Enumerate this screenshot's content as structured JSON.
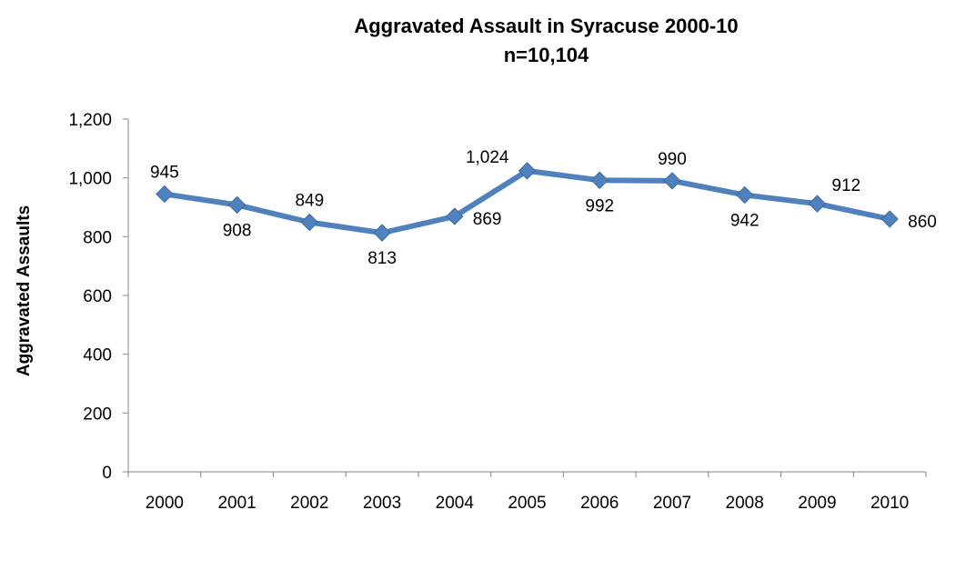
{
  "chart_data": {
    "type": "line",
    "title": "Aggravated Assault in Syracuse 2000-10",
    "subtitle": "n=10,104",
    "xlabel": "",
    "ylabel": "Aggravated Assaults",
    "categories": [
      "2000",
      "2001",
      "2002",
      "2003",
      "2004",
      "2005",
      "2006",
      "2007",
      "2008",
      "2009",
      "2010"
    ],
    "series": [
      {
        "values": [
          945,
          908,
          849,
          813,
          869,
          1024,
          992,
          990,
          942,
          912,
          860
        ],
        "data_labels": [
          "945",
          "908",
          "849",
          "813",
          "869",
          "1,024",
          "992",
          "990",
          "942",
          "912",
          "860"
        ],
        "label_placement": [
          "above",
          "below",
          "above",
          "below",
          "right",
          "above-left",
          "below",
          "above",
          "below",
          "above-right",
          "right"
        ]
      }
    ],
    "ylim": [
      0,
      1200
    ],
    "yticks": [
      0,
      200,
      400,
      600,
      800,
      1000,
      1200
    ],
    "ytick_labels": [
      "0",
      "200",
      "400",
      "600",
      "800",
      "1,000",
      "1,200"
    ],
    "grid": false,
    "legend": "none",
    "colors": {
      "line": "#4F81BD",
      "axis": "#868686",
      "text": "#000000"
    },
    "marker": "diamond"
  }
}
